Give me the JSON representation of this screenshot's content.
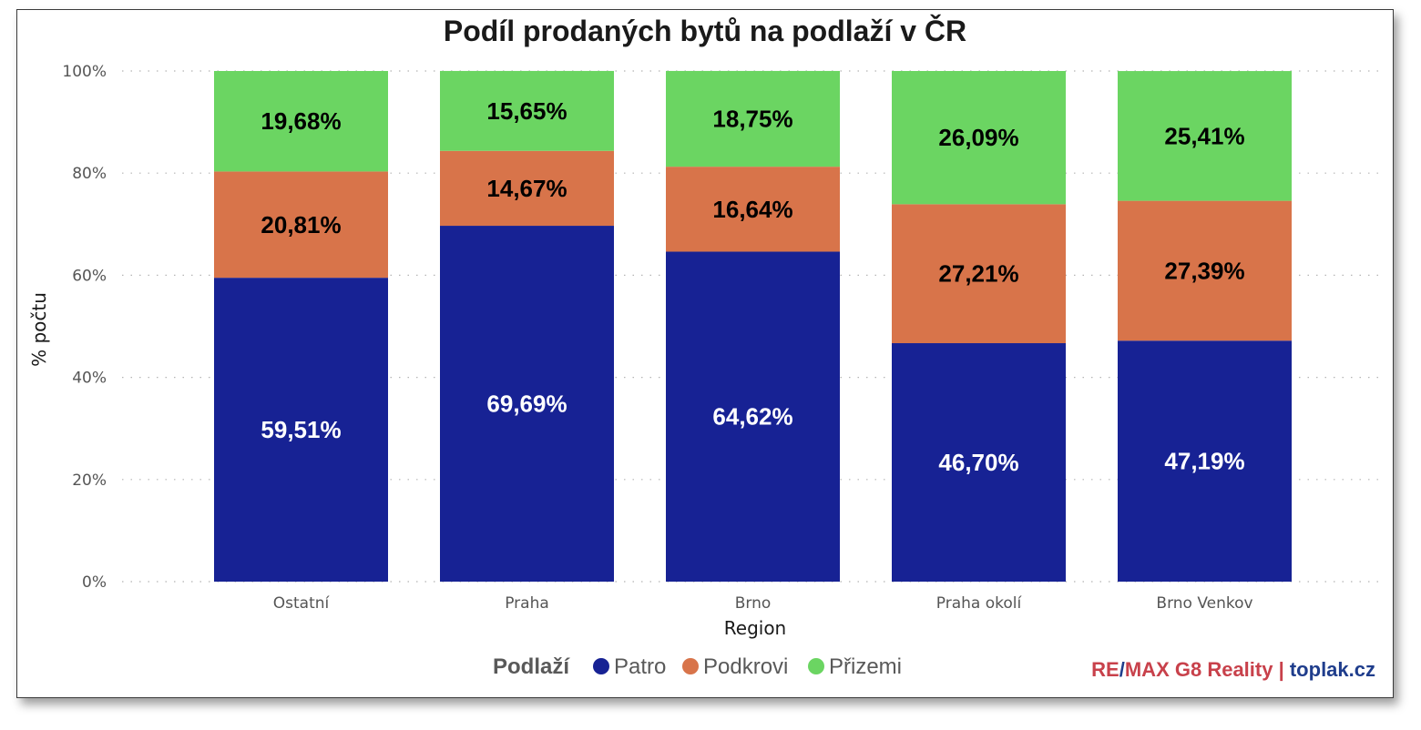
{
  "chart_data": {
    "type": "bar",
    "stacked": true,
    "title": "Podíl prodaných bytů na podlaží v ČR",
    "xlabel": "Region",
    "ylabel": "% počtu",
    "ylim": [
      0,
      100
    ],
    "yticks": [
      "0%",
      "20%",
      "40%",
      "60%",
      "80%",
      "100%"
    ],
    "categories": [
      "Ostatní",
      "Praha",
      "Brno",
      "Praha okolí",
      "Brno Venkov"
    ],
    "series": [
      {
        "name": "Patro",
        "color": "#172294",
        "values": [
          59.51,
          69.69,
          64.62,
          46.7,
          47.19
        ],
        "labels": [
          "59,51%",
          "69,69%",
          "64,62%",
          "46,70%",
          "47,19%"
        ],
        "label_color": "#ffffff"
      },
      {
        "name": "Podkrovi",
        "color": "#d8744a",
        "values": [
          20.81,
          14.67,
          16.64,
          27.21,
          27.39
        ],
        "labels": [
          "20,81%",
          "14,67%",
          "16,64%",
          "27,21%",
          "27,39%"
        ],
        "label_color": "#000000"
      },
      {
        "name": "Přizemi",
        "color": "#6bd562",
        "values": [
          19.68,
          15.65,
          18.75,
          26.09,
          25.41
        ],
        "labels": [
          "19,68%",
          "15,65%",
          "18,75%",
          "26,09%",
          "25,41%"
        ],
        "label_color": "#000000"
      }
    ],
    "grid": true,
    "legend": {
      "title": "Podlaží",
      "position": "bottom"
    }
  },
  "brand": {
    "part1": "RE",
    "sep1": "/",
    "part2": "MAX G8 Reality",
    "sep2": " | ",
    "part3": "toplak.cz",
    "color_red": "#c8414b",
    "color_blue": "#1f3d8c"
  }
}
